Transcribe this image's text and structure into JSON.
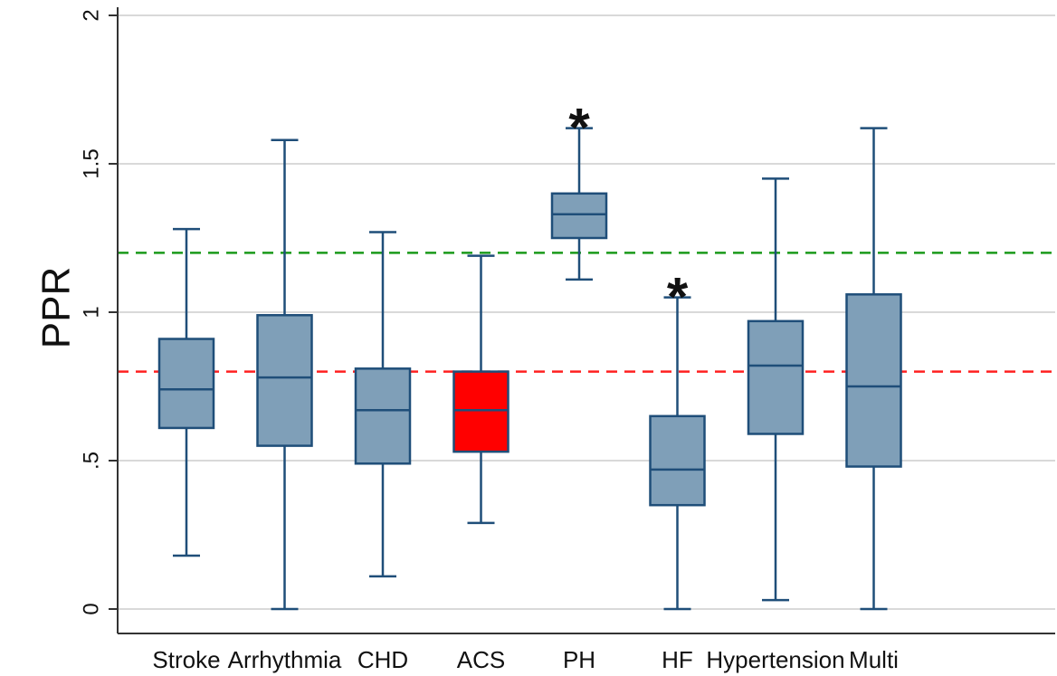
{
  "chart_data": {
    "type": "box",
    "ylabel": "PPR",
    "xlabel": "",
    "title": "",
    "ylim": [
      0,
      2
    ],
    "yticks": [
      {
        "value": 0,
        "label": "0"
      },
      {
        "value": 0.5,
        "label": ".5"
      },
      {
        "value": 1,
        "label": "1"
      },
      {
        "value": 1.5,
        "label": "1.5"
      },
      {
        "value": 2,
        "label": "2"
      }
    ],
    "grid": true,
    "colors": {
      "box_fill": "#7f9fb8",
      "box_stroke": "#1f4e79",
      "highlight_fill": "#ff0000",
      "upper_ref": "#1a9a1a",
      "lower_ref": "#ff2020"
    },
    "categories": [
      "Stroke",
      "Arrhythmia",
      "CHD",
      "ACS",
      "PH",
      "HF",
      "Hypertension",
      "Multi"
    ],
    "boxes": [
      {
        "label": "Stroke",
        "min": 0.18,
        "q1": 0.61,
        "median": 0.74,
        "q3": 0.91,
        "max": 1.28,
        "highlight": false
      },
      {
        "label": "Arrhythmia",
        "min": 0.0,
        "q1": 0.55,
        "median": 0.78,
        "q3": 0.99,
        "max": 1.58,
        "highlight": false
      },
      {
        "label": "CHD",
        "min": 0.11,
        "q1": 0.49,
        "median": 0.67,
        "q3": 0.81,
        "max": 1.27,
        "highlight": false
      },
      {
        "label": "ACS",
        "min": 0.29,
        "q1": 0.53,
        "median": 0.67,
        "q3": 0.8,
        "max": 1.19,
        "highlight": true
      },
      {
        "label": "PH",
        "min": 1.11,
        "q1": 1.25,
        "median": 1.33,
        "q3": 1.4,
        "max": 1.62,
        "highlight": false
      },
      {
        "label": "HF",
        "min": 0.0,
        "q1": 0.35,
        "median": 0.47,
        "q3": 0.65,
        "max": 1.05,
        "highlight": false
      },
      {
        "label": "Hypertension",
        "min": 0.03,
        "q1": 0.59,
        "median": 0.82,
        "q3": 0.97,
        "max": 1.45,
        "highlight": false
      },
      {
        "label": "Multi",
        "min": 0.0,
        "q1": 0.48,
        "median": 0.75,
        "q3": 1.06,
        "max": 1.62,
        "highlight": false
      }
    ],
    "reference_lines": [
      {
        "y": 1.2,
        "color": "#1a9a1a",
        "style": "dashed"
      },
      {
        "y": 0.8,
        "color": "#ff2020",
        "style": "dashed"
      }
    ],
    "annotations": [
      {
        "category": "PH",
        "text": "*"
      },
      {
        "category": "HF",
        "text": "*"
      }
    ]
  }
}
